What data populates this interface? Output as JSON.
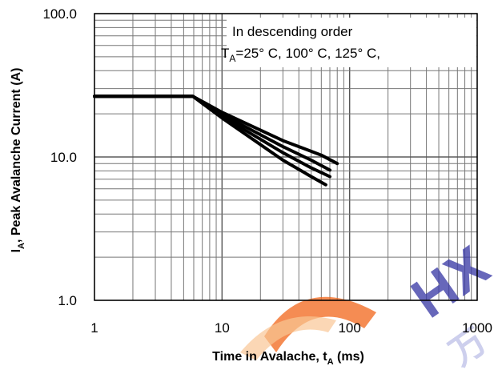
{
  "chart_data": {
    "type": "line",
    "x_scale": "log",
    "y_scale": "log",
    "xlim": [
      1,
      1000
    ],
    "ylim": [
      1,
      100
    ],
    "x_ticks": [
      1,
      10,
      100,
      1000
    ],
    "x_tick_labels": [
      "1",
      "10",
      "100",
      "1000"
    ],
    "y_ticks": [
      1,
      10,
      100
    ],
    "y_tick_labels": [
      "1.0",
      "10.0",
      "100.0"
    ],
    "grid": true,
    "xlabel_parts": [
      "Time in Avalache, t",
      "A",
      " (ms)"
    ],
    "ylabel_parts": [
      "I",
      "A",
      ", Peak Avalanche Current (A)"
    ],
    "annotation": {
      "line1": "In descending order",
      "line2_parts": [
        "T",
        "A",
        "=25°  C, 100°  C, 125°  C,"
      ]
    },
    "series": [
      {
        "x": [
          1,
          5.9,
          10,
          30,
          60,
          80
        ],
        "y": [
          26.5,
          26.5,
          20.5,
          13.0,
          10.3,
          9.0
        ]
      },
      {
        "x": [
          1,
          5.9,
          10,
          30,
          50,
          70
        ],
        "y": [
          26.5,
          26.5,
          19.8,
          11.8,
          9.5,
          8.1
        ]
      },
      {
        "x": [
          1,
          5.9,
          10,
          30,
          50,
          70
        ],
        "y": [
          26.5,
          26.5,
          19.2,
          10.7,
          8.4,
          7.3
        ]
      },
      {
        "x": [
          1,
          5.9,
          10,
          30,
          50,
          65
        ],
        "y": [
          26.5,
          26.5,
          18.7,
          9.5,
          7.3,
          6.4
        ]
      }
    ],
    "series_color": "#000000"
  },
  "watermark": {
    "logo_text": "HX",
    "sub_text": "万",
    "colors": [
      "#f26a1f",
      "#f9c08a",
      "#3a3aa6",
      "#b9bde6"
    ]
  }
}
